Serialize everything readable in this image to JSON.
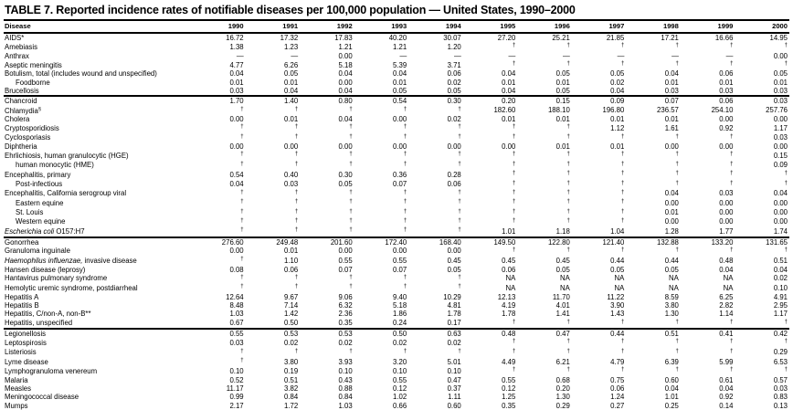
{
  "title": "TABLE 7. Reported incidence rates of notifiable diseases per 100,000 population — United States, 1990–2000",
  "table": {
    "disease_column_header": "Disease",
    "year_headers": [
      "1990",
      "1991",
      "1992",
      "1993",
      "1994",
      "1995",
      "1996",
      "1997",
      "1998",
      "1999",
      "2000"
    ],
    "dagger_symbol": "†",
    "sections": [
      {
        "rows": [
          {
            "label": "AIDS*",
            "values": [
              "16.72",
              "17.32",
              "17.83",
              "40.20",
              "30.07",
              "27.20",
              "25.21",
              "21.85",
              "17.21",
              "16.66",
              "14.95"
            ]
          },
          {
            "label": "Amebiasis",
            "values": [
              "1.38",
              "1.23",
              "1.21",
              "1.21",
              "1.20",
              "†",
              "†",
              "†",
              "†",
              "†",
              "†"
            ]
          },
          {
            "label": "Anthrax",
            "values": [
              "—",
              "—",
              "0.00",
              "—",
              "—",
              "—",
              "—",
              "—",
              "—",
              "—",
              "0.00"
            ]
          },
          {
            "label": "Aseptic meningitis",
            "values": [
              "4.77",
              "6.26",
              "5.18",
              "5.39",
              "3.71",
              "†",
              "†",
              "†",
              "†",
              "†",
              "†"
            ]
          },
          {
            "label": "Botulism, total (includes wound and unspecified)",
            "values": [
              "0.04",
              "0.05",
              "0.04",
              "0.04",
              "0.06",
              "0.04",
              "0.05",
              "0.05",
              "0.04",
              "0.06",
              "0.05"
            ]
          },
          {
            "label": "Foodborne",
            "indent": true,
            "values": [
              "0.01",
              "0.01",
              "0.00",
              "0.01",
              "0.02",
              "0.01",
              "0.01",
              "0.02",
              "0.01",
              "0.01",
              "0.01"
            ]
          },
          {
            "label": "Brucellosis",
            "values": [
              "0.03",
              "0.04",
              "0.04",
              "0.05",
              "0.05",
              "0.04",
              "0.05",
              "0.04",
              "0.03",
              "0.03",
              "0.03"
            ]
          }
        ]
      },
      {
        "rows": [
          {
            "label": "Chancroid",
            "values": [
              "1.70",
              "1.40",
              "0.80",
              "0.54",
              "0.30",
              "0.20",
              "0.15",
              "0.09",
              "0.07",
              "0.06",
              "0.03"
            ]
          },
          {
            "label": "Chlamydia",
            "sup": "§",
            "values": [
              "†",
              "†",
              "†",
              "†",
              "†",
              "182.60",
              "188.10",
              "196.80",
              "236.57",
              "254.10",
              "257.76"
            ]
          },
          {
            "label": "Cholera",
            "values": [
              "0.00",
              "0.01",
              "0.04",
              "0.00",
              "0.02",
              "0.01",
              "0.01",
              "0.01",
              "0.01",
              "0.00",
              "0.00"
            ]
          },
          {
            "label": "Cryptosporidiosis",
            "values": [
              "†",
              "†",
              "†",
              "†",
              "†",
              "†",
              "†",
              "1.12",
              "1.61",
              "0.92",
              "1.17"
            ]
          },
          {
            "label": "Cyclosporiasis",
            "values": [
              "†",
              "†",
              "†",
              "†",
              "†",
              "†",
              "†",
              "†",
              "†",
              "†",
              "0.03"
            ]
          },
          {
            "label": "Diphtheria",
            "values": [
              "0.00",
              "0.00",
              "0.00",
              "0.00",
              "0.00",
              "0.00",
              "0.01",
              "0.01",
              "0.00",
              "0.00",
              "0.00"
            ]
          },
          {
            "label": "Ehrlichiosis, human granulocytic (HGE)",
            "values": [
              "†",
              "†",
              "†",
              "†",
              "†",
              "†",
              "†",
              "†",
              "†",
              "†",
              "0.15"
            ]
          },
          {
            "label": "human monocytic (HME)",
            "indent": true,
            "values": [
              "†",
              "†",
              "†",
              "†",
              "†",
              "†",
              "†",
              "†",
              "†",
              "†",
              "0.09"
            ]
          },
          {
            "label": "Encephalitis, primary",
            "values": [
              "0.54",
              "0.40",
              "0.30",
              "0.36",
              "0.28",
              "†",
              "†",
              "†",
              "†",
              "†",
              "†"
            ]
          },
          {
            "label": "Post-infectious",
            "indent": true,
            "values": [
              "0.04",
              "0.03",
              "0.05",
              "0.07",
              "0.06",
              "†",
              "†",
              "†",
              "†",
              "†",
              "†"
            ]
          },
          {
            "label": "Encephalitis, California serogroup viral",
            "values": [
              "†",
              "†",
              "†",
              "†",
              "†",
              "†",
              "†",
              "†",
              "0.04",
              "0.03",
              "0.04"
            ]
          },
          {
            "label": "Eastern equine",
            "indent": true,
            "values": [
              "†",
              "†",
              "†",
              "†",
              "†",
              "†",
              "†",
              "†",
              "0.00",
              "0.00",
              "0.00"
            ]
          },
          {
            "label": "St. Louis",
            "indent": true,
            "values": [
              "†",
              "†",
              "†",
              "†",
              "†",
              "†",
              "†",
              "†",
              "0.01",
              "0.00",
              "0.00"
            ]
          },
          {
            "label": "Western equine",
            "indent": true,
            "values": [
              "†",
              "†",
              "†",
              "†",
              "†",
              "†",
              "†",
              "†",
              "0.00",
              "0.00",
              "0.00"
            ]
          },
          {
            "label": " O157:H7",
            "italic_prefix": "Escherichia coli",
            "values": [
              "†",
              "†",
              "†",
              "†",
              "†",
              "1.01",
              "1.18",
              "1.04",
              "1.28",
              "1.77",
              "1.74"
            ]
          }
        ]
      },
      {
        "rows": [
          {
            "label": "Gonorrhea",
            "values": [
              "276.60",
              "249.48",
              "201.60",
              "172.40",
              "168.40",
              "149.50",
              "122.80",
              "121.40",
              "132.88",
              "133.20",
              "131.65"
            ]
          },
          {
            "label": "Granuloma inguinale",
            "values": [
              "0.00",
              "0.01",
              "0.00",
              "0.00",
              "0.00",
              "†",
              "†",
              "†",
              "†",
              "†",
              "†"
            ]
          },
          {
            "label": " invasive disease",
            "italic_prefix": "Haemophilus influenzae,",
            "values": [
              "†",
              "1.10",
              "0.55",
              "0.55",
              "0.45",
              "0.45",
              "0.45",
              "0.44",
              "0.44",
              "0.48",
              "0.51"
            ]
          },
          {
            "label": "Hansen disease (leprosy)",
            "values": [
              "0.08",
              "0.06",
              "0.07",
              "0.07",
              "0.05",
              "0.06",
              "0.05",
              "0.05",
              "0.05",
              "0.04",
              "0.04"
            ]
          },
          {
            "label": "Hantavirus pulmonary syndrome",
            "values": [
              "†",
              "†",
              "†",
              "†",
              "†",
              "NA",
              "NA",
              "NA",
              "NA",
              "NA",
              "0.02"
            ]
          },
          {
            "label": "Hemolytic uremic syndrome, postdiarrheal",
            "values": [
              "†",
              "†",
              "†",
              "†",
              "†",
              "NA",
              "NA",
              "NA",
              "NA",
              "NA",
              "0.10"
            ]
          },
          {
            "label": "Hepatitis A",
            "values": [
              "12.64",
              "9.67",
              "9.06",
              "9.40",
              "10.29",
              "12.13",
              "11.70",
              "11.22",
              "8.59",
              "6.25",
              "4.91"
            ]
          },
          {
            "label": "Hepatitis B",
            "values": [
              "8.48",
              "7.14",
              "6.32",
              "5.18",
              "4.81",
              "4.19",
              "4.01",
              "3.90",
              "3.80",
              "2.82",
              "2.95"
            ]
          },
          {
            "label": "Hepatitis, C/non-A, non-B**",
            "values": [
              "1.03",
              "1.42",
              "2.36",
              "1.86",
              "1.78",
              "1.78",
              "1.41",
              "1.43",
              "1.30",
              "1.14",
              "1.17"
            ]
          },
          {
            "label": "Hepatitis, unspecified",
            "values": [
              "0.67",
              "0.50",
              "0.35",
              "0.24",
              "0.17",
              "†",
              "†",
              "†",
              "†",
              "†",
              "†"
            ]
          }
        ]
      },
      {
        "rows": [
          {
            "label": "Legionellosis",
            "values": [
              "0.55",
              "0.53",
              "0.53",
              "0.50",
              "0.63",
              "0.48",
              "0.47",
              "0.44",
              "0.51",
              "0.41",
              "0.42"
            ]
          },
          {
            "label": "Leptospirosis",
            "values": [
              "0.03",
              "0.02",
              "0.02",
              "0.02",
              "0.02",
              "†",
              "†",
              "†",
              "†",
              "†",
              "†"
            ]
          },
          {
            "label": "Listeriosis",
            "values": [
              "†",
              "†",
              "†",
              "†",
              "†",
              "†",
              "†",
              "†",
              "†",
              "†",
              "0.29"
            ]
          },
          {
            "label": "Lyme disease",
            "values": [
              "†",
              "3.80",
              "3.93",
              "3.20",
              "5.01",
              "4.49",
              "6.21",
              "4.79",
              "6.39",
              "5.99",
              "6.53"
            ]
          },
          {
            "label": "Lymphogranuloma venereum",
            "values": [
              "0.10",
              "0.19",
              "0.10",
              "0.10",
              "0.10",
              "†",
              "†",
              "†",
              "†",
              "†",
              "†"
            ]
          },
          {
            "label": "Malaria",
            "values": [
              "0.52",
              "0.51",
              "0.43",
              "0.55",
              "0.47",
              "0.55",
              "0.68",
              "0.75",
              "0.60",
              "0.61",
              "0.57"
            ]
          },
          {
            "label": "Measles",
            "values": [
              "11.17",
              "3.82",
              "0.88",
              "0.12",
              "0.37",
              "0.12",
              "0.20",
              "0.06",
              "0.04",
              "0.04",
              "0.03"
            ]
          },
          {
            "label": "Meningococcal disease",
            "values": [
              "0.99",
              "0.84",
              "0.84",
              "1.02",
              "1.11",
              "1.25",
              "1.30",
              "1.24",
              "1.01",
              "0.92",
              "0.83"
            ]
          },
          {
            "label": "Mumps",
            "values": [
              "2.17",
              "1.72",
              "1.03",
              "0.66",
              "0.60",
              "0.35",
              "0.29",
              "0.27",
              "0.25",
              "0.14",
              "0.13"
            ]
          },
          {
            "label": "Murine typhus fever",
            "values": [
              "0.02",
              "0.02",
              "0.02",
              "0.01",
              "0.01",
              "†",
              "†",
              "†",
              "†",
              "†",
              "†"
            ]
          }
        ]
      }
    ]
  },
  "chart_data": {
    "type": "table",
    "title": "TABLE 7. Reported incidence rates of notifiable diseases per 100,000 population — United States, 1990–2000",
    "columns": [
      "Disease",
      "1990",
      "1991",
      "1992",
      "1993",
      "1994",
      "1995",
      "1996",
      "1997",
      "1998",
      "1999",
      "2000"
    ]
  }
}
